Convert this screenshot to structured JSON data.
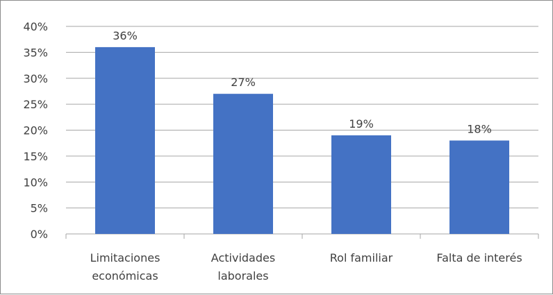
{
  "chart_data": {
    "type": "bar",
    "categories": [
      [
        "Limitaciones",
        "económicas"
      ],
      [
        "Actividades",
        "laborales"
      ],
      [
        "Rol familiar"
      ],
      [
        "Falta de interés"
      ]
    ],
    "values": [
      36,
      27,
      19,
      18
    ],
    "data_labels": [
      "36%",
      "27%",
      "19%",
      "18%"
    ],
    "ylim": [
      0,
      40
    ],
    "yticks": [
      "0%",
      "5%",
      "10%",
      "15%",
      "20%",
      "25%",
      "30%",
      "35%",
      "40%"
    ],
    "grid": true,
    "bar_color": "#4472c4",
    "grid_color": "#a6a6a6",
    "legend": "none",
    "title": "",
    "xlabel": "",
    "ylabel": ""
  }
}
